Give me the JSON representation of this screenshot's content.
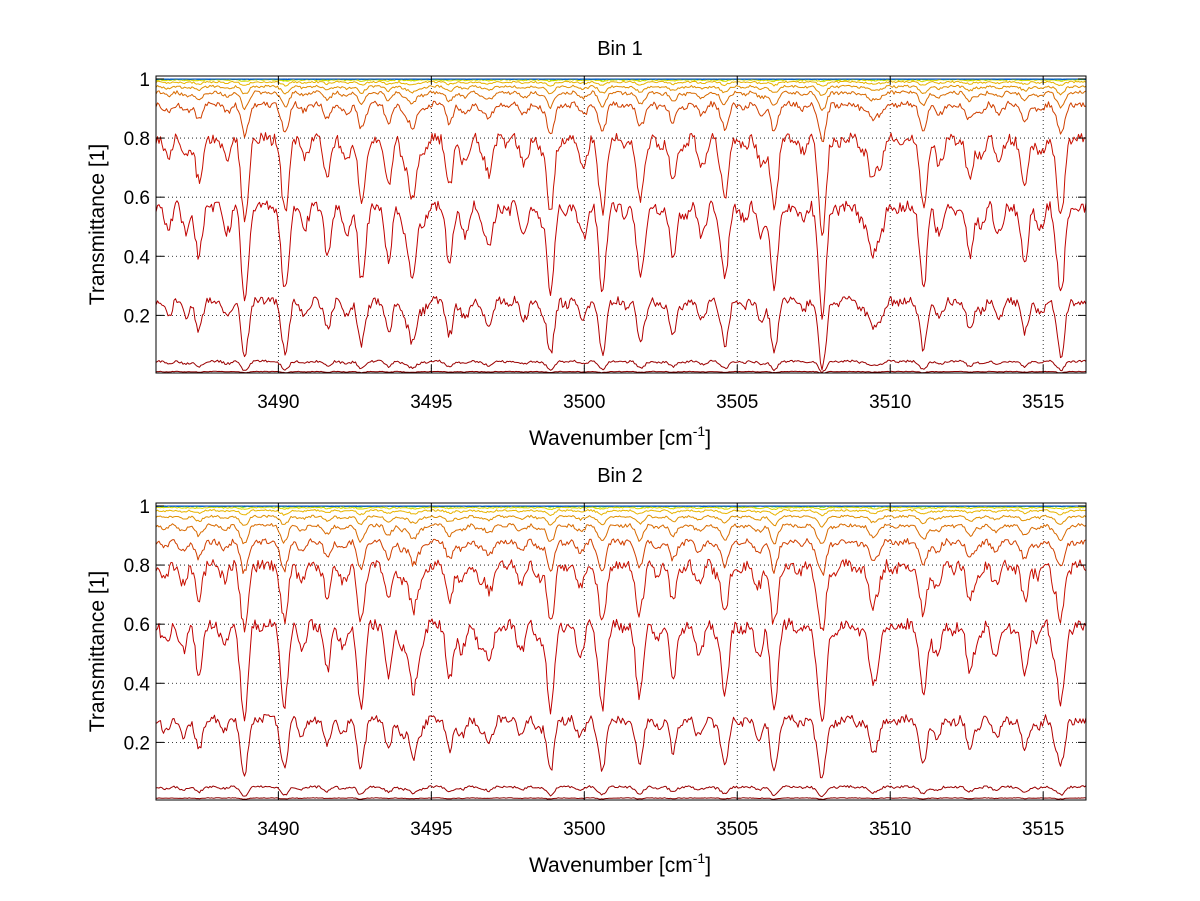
{
  "chart_data": [
    {
      "type": "line",
      "title": "Bin 1",
      "xlabel_main": "Wavenumber [cm",
      "xlabel_sup": "-1",
      "xlabel_end": "]",
      "ylabel": "Transmittance [1]",
      "xlim": [
        3486,
        3516.4
      ],
      "ylim": [
        0.005,
        1.01
      ],
      "xticks": [
        3490,
        3495,
        3500,
        3505,
        3510,
        3515
      ],
      "yticks": [
        0.2,
        0.4,
        0.6,
        0.8,
        1
      ],
      "grid": true,
      "series": [
        {
          "color": "#880000",
          "base": 0.01,
          "depth": 0.004,
          "noise": 0.001
        },
        {
          "color": "#9a0000",
          "base": 0.045,
          "depth": 0.03,
          "noise": 0.004
        },
        {
          "color": "#b00000",
          "base": 0.25,
          "depth": 0.18,
          "noise": 0.015
        },
        {
          "color": "#c00000",
          "base": 0.57,
          "depth": 0.3,
          "noise": 0.02
        },
        {
          "color": "#c81000",
          "base": 0.8,
          "depth": 0.26,
          "noise": 0.02
        },
        {
          "color": "#d04000",
          "base": 0.915,
          "depth": 0.1,
          "noise": 0.01
        },
        {
          "color": "#d86a00",
          "base": 0.955,
          "depth": 0.05,
          "noise": 0.006
        },
        {
          "color": "#e09000",
          "base": 0.975,
          "depth": 0.025,
          "noise": 0.004
        },
        {
          "color": "#e8b400",
          "base": 0.99,
          "depth": 0.012,
          "noise": 0.003
        },
        {
          "color": "#d8d800",
          "base": 0.997,
          "depth": 0.005,
          "noise": 0.002
        },
        {
          "color": "#90e000",
          "base": 0.999,
          "depth": 0.002,
          "noise": 0.002
        },
        {
          "color": "#30d0a0",
          "base": 1.0,
          "depth": 0.001,
          "noise": 0.002
        },
        {
          "color": "#0090e0",
          "base": 1.0,
          "depth": 0.0,
          "noise": 0.002
        },
        {
          "color": "#0040c0",
          "base": 1.0,
          "depth": 0.0,
          "noise": 0.001
        }
      ]
    },
    {
      "type": "line",
      "title": "Bin 2",
      "xlabel_main": "Wavenumber [cm",
      "xlabel_sup": "-1",
      "xlabel_end": "]",
      "ylabel": "Transmittance [1]",
      "xlim": [
        3486,
        3516.4
      ],
      "ylim": [
        0.005,
        1.01
      ],
      "xticks": [
        3490,
        3495,
        3500,
        3505,
        3510,
        3515
      ],
      "yticks": [
        0.2,
        0.4,
        0.6,
        0.8,
        1
      ],
      "grid": true,
      "series": [
        {
          "color": "#880000",
          "base": 0.012,
          "depth": 0.004,
          "noise": 0.001
        },
        {
          "color": "#9a0000",
          "base": 0.05,
          "depth": 0.03,
          "noise": 0.004
        },
        {
          "color": "#b00000",
          "base": 0.28,
          "depth": 0.18,
          "noise": 0.015
        },
        {
          "color": "#c00000",
          "base": 0.6,
          "depth": 0.3,
          "noise": 0.02
        },
        {
          "color": "#c81000",
          "base": 0.8,
          "depth": 0.2,
          "noise": 0.02
        },
        {
          "color": "#d04000",
          "base": 0.88,
          "depth": 0.1,
          "noise": 0.01
        },
        {
          "color": "#d86a00",
          "base": 0.935,
          "depth": 0.06,
          "noise": 0.006
        },
        {
          "color": "#e09000",
          "base": 0.965,
          "depth": 0.03,
          "noise": 0.004
        },
        {
          "color": "#e8b400",
          "base": 0.985,
          "depth": 0.015,
          "noise": 0.003
        },
        {
          "color": "#d8d800",
          "base": 0.995,
          "depth": 0.006,
          "noise": 0.002
        },
        {
          "color": "#90e000",
          "base": 0.999,
          "depth": 0.002,
          "noise": 0.002
        },
        {
          "color": "#30d0a0",
          "base": 1.0,
          "depth": 0.001,
          "noise": 0.002
        },
        {
          "color": "#0090e0",
          "base": 1.0,
          "depth": 0.0,
          "noise": 0.002
        },
        {
          "color": "#0040c0",
          "base": 1.0,
          "depth": 0.0,
          "noise": 0.001
        }
      ]
    }
  ]
}
